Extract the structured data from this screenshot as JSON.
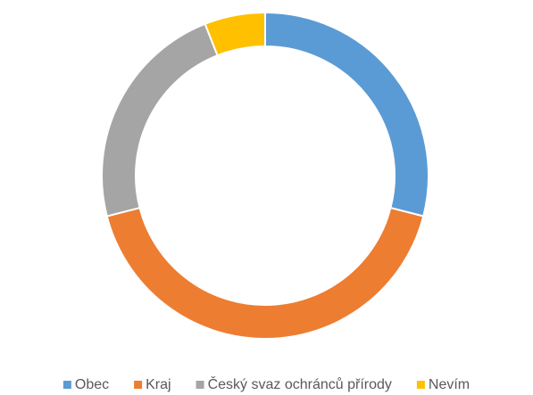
{
  "chart_data": {
    "type": "donut",
    "categories": [
      "Obec",
      "Kraj",
      "Český svaz ochránců přírody",
      "Nevím"
    ],
    "values": [
      29,
      42,
      23,
      6
    ],
    "colors": [
      "#5b9bd5",
      "#ed7d31",
      "#a5a5a5",
      "#ffc000"
    ],
    "legend": "bottom"
  }
}
